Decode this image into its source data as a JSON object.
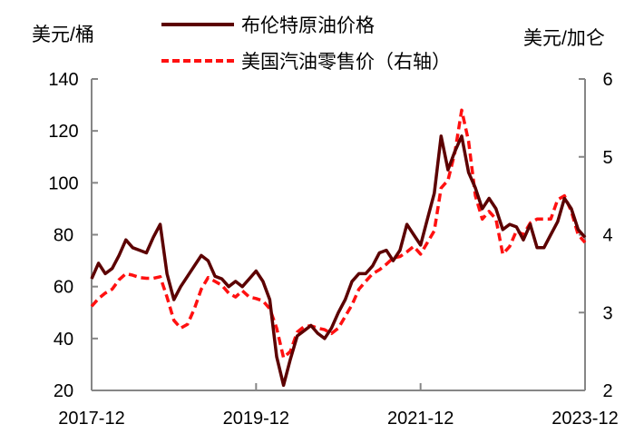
{
  "units": {
    "left": "美元/桶",
    "right": "美元/加仑"
  },
  "legend": [
    {
      "label": "布伦特原油价格",
      "style": "solid",
      "color": "#5c0000"
    },
    {
      "label": "美国汽油零售价（右轴）",
      "style": "dashed",
      "color": "#ff1010"
    }
  ],
  "chart_data": {
    "type": "line",
    "title": "",
    "xlabel": "",
    "ylabel": "美元/桶",
    "ylabel_right": "美元/加仑",
    "ylim": [
      20,
      140
    ],
    "ylim_right": [
      2,
      6
    ],
    "yticks": [
      20,
      40,
      60,
      80,
      100,
      120,
      140
    ],
    "yticks_right": [
      2,
      3,
      4,
      5,
      6
    ],
    "xticks": [
      "2017-12",
      "2019-12",
      "2021-12",
      "2023-12"
    ],
    "grid": false,
    "legend_position": "top",
    "x": [
      "2017-12",
      "2018-01",
      "2018-02",
      "2018-03",
      "2018-04",
      "2018-05",
      "2018-06",
      "2018-07",
      "2018-08",
      "2018-09",
      "2018-10",
      "2018-11",
      "2018-12",
      "2019-01",
      "2019-02",
      "2019-03",
      "2019-04",
      "2019-05",
      "2019-06",
      "2019-07",
      "2019-08",
      "2019-09",
      "2019-10",
      "2019-11",
      "2019-12",
      "2020-01",
      "2020-02",
      "2020-03",
      "2020-04",
      "2020-05",
      "2020-06",
      "2020-07",
      "2020-08",
      "2020-09",
      "2020-10",
      "2020-11",
      "2020-12",
      "2021-01",
      "2021-02",
      "2021-03",
      "2021-04",
      "2021-05",
      "2021-06",
      "2021-07",
      "2021-08",
      "2021-09",
      "2021-10",
      "2021-11",
      "2021-12",
      "2022-01",
      "2022-02",
      "2022-03",
      "2022-04",
      "2022-05",
      "2022-06",
      "2022-07",
      "2022-08",
      "2022-09",
      "2022-10",
      "2022-11",
      "2022-12",
      "2023-01",
      "2023-02",
      "2023-03",
      "2023-04",
      "2023-05",
      "2023-06",
      "2023-07",
      "2023-08",
      "2023-09",
      "2023-10",
      "2023-11",
      "2023-12"
    ],
    "series": [
      {
        "name": "布伦特原油价格",
        "axis": "left",
        "values": [
          63,
          69,
          65,
          67,
          72,
          78,
          75,
          74,
          73,
          79,
          84,
          65,
          55,
          60,
          64,
          68,
          72,
          70,
          64,
          63,
          60,
          62,
          60,
          63,
          66,
          62,
          55,
          33,
          22,
          32,
          41,
          43,
          45,
          42,
          40,
          44,
          50,
          55,
          62,
          65,
          65,
          68,
          73,
          74,
          70,
          74,
          84,
          80,
          76,
          86,
          96,
          118,
          105,
          112,
          118,
          104,
          98,
          90,
          94,
          90,
          82,
          84,
          83,
          78,
          84,
          75,
          75,
          80,
          85,
          94,
          90,
          82,
          79
        ]
      },
      {
        "name": "美国汽油零售价（右轴）",
        "axis": "right",
        "values": [
          3.08,
          3.18,
          3.25,
          3.3,
          3.42,
          3.5,
          3.48,
          3.45,
          3.44,
          3.44,
          3.46,
          3.2,
          2.9,
          2.8,
          2.85,
          3.05,
          3.3,
          3.45,
          3.4,
          3.35,
          3.25,
          3.2,
          3.28,
          3.2,
          3.18,
          3.15,
          3.05,
          2.8,
          2.42,
          2.5,
          2.75,
          2.82,
          2.83,
          2.8,
          2.78,
          2.73,
          2.8,
          2.95,
          3.1,
          3.3,
          3.4,
          3.5,
          3.55,
          3.62,
          3.7,
          3.72,
          3.78,
          3.85,
          3.75,
          3.9,
          4.05,
          4.6,
          4.7,
          5.05,
          5.6,
          5.2,
          4.5,
          4.2,
          4.3,
          4.2,
          3.75,
          3.85,
          4.05,
          4.0,
          4.15,
          4.2,
          4.2,
          4.2,
          4.45,
          4.5,
          4.3,
          4.0,
          3.9
        ]
      }
    ]
  }
}
